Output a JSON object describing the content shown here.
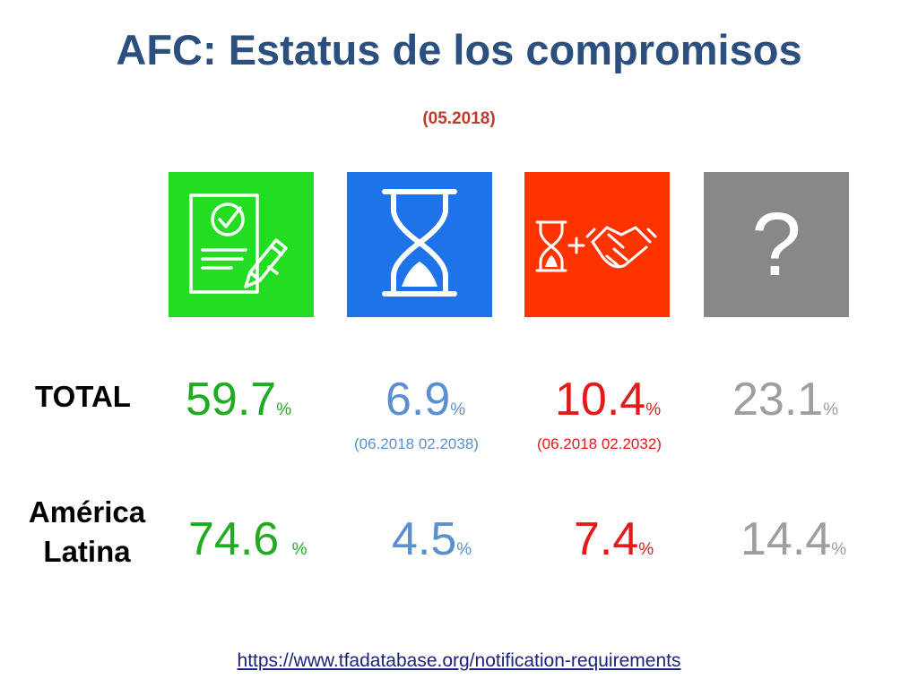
{
  "title": "AFC:  Estatus de los compromisos",
  "subtitle": "(05.2018)",
  "colors": {
    "title": "#2b4f7e",
    "subtitle": "#c0392b",
    "green": "#22dd22",
    "blue": "#1f73e8",
    "orange": "#ff3300",
    "gray": "#888888",
    "value_green": "#22aa22",
    "value_blue": "#5b8fcf",
    "value_red": "#e21a1a",
    "value_gray": "#9e9e9e"
  },
  "categories": [
    {
      "icon": "signed-document-check-pencil-icon",
      "color": "green"
    },
    {
      "icon": "hourglass-icon",
      "color": "blue"
    },
    {
      "icon": "hourglass-plus-handshake-icon",
      "color": "orange"
    },
    {
      "icon": "question-mark-icon",
      "color": "gray",
      "symbol": "?"
    }
  ],
  "rows": [
    {
      "label": "TOTAL",
      "values": [
        {
          "number": "59.7",
          "unit": "%"
        },
        {
          "number": "6.9",
          "unit": "%",
          "dates": "(06.2018 02.2038)"
        },
        {
          "number": "10.4",
          "unit": "%",
          "dates": "(06.2018 02.2032)"
        },
        {
          "number": "23.1",
          "unit": "%"
        }
      ]
    },
    {
      "label": "América Latina",
      "values": [
        {
          "number": "74.6 ",
          "unit": "%"
        },
        {
          "number": "4.5",
          "unit": "%"
        },
        {
          "number": "7.4",
          "unit": "%"
        },
        {
          "number": "14.4",
          "unit": "%"
        }
      ]
    }
  ],
  "source_link": "https://www.tfadatabase.org/notification-requirements"
}
